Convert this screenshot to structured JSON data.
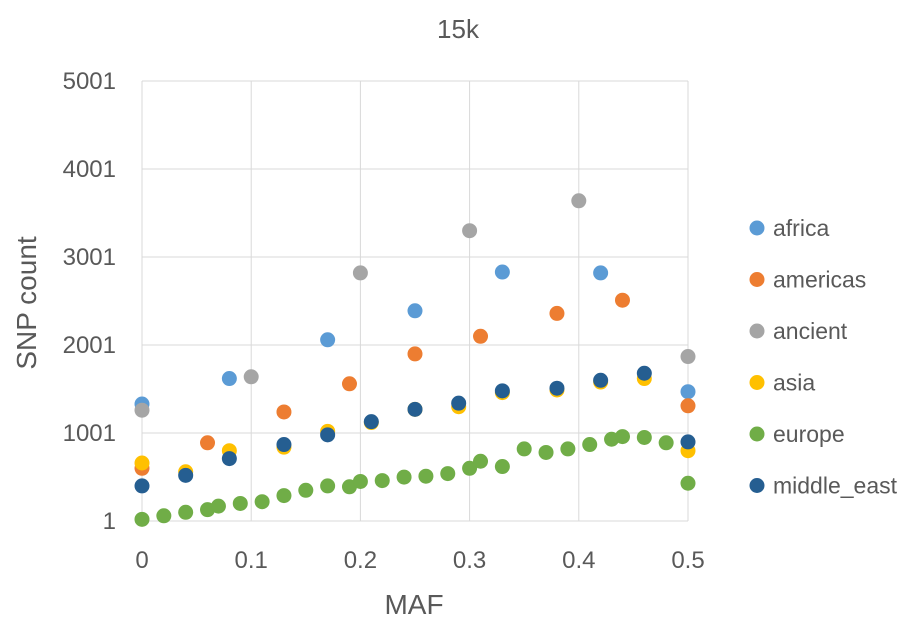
{
  "chart_data": {
    "type": "scatter",
    "title": "15k",
    "xlabel": "MAF",
    "ylabel": "SNP count",
    "xlim": [
      0,
      0.5
    ],
    "ylim": [
      1,
      5001
    ],
    "x_ticks": [
      0,
      0.1,
      0.2,
      0.3,
      0.4,
      0.5
    ],
    "x_tick_labels": [
      "0",
      "0.1",
      "0.2",
      "0.3",
      "0.4",
      "0.5"
    ],
    "y_ticks": [
      1,
      1001,
      2001,
      3001,
      4001,
      5001
    ],
    "y_tick_labels": [
      "1",
      "1001",
      "2001",
      "3001",
      "4001",
      "5001"
    ],
    "grid": true,
    "legend_position": "right",
    "series": [
      {
        "name": "africa",
        "color": "#5B9BD5",
        "points": [
          [
            0,
            1330
          ],
          [
            0.08,
            1620
          ],
          [
            0.17,
            2060
          ],
          [
            0.25,
            2390
          ],
          [
            0.33,
            2830
          ],
          [
            0.42,
            2820
          ],
          [
            0.5,
            1470
          ]
        ]
      },
      {
        "name": "americas",
        "color": "#ED7D31",
        "points": [
          [
            0,
            600
          ],
          [
            0.06,
            890
          ],
          [
            0.13,
            1240
          ],
          [
            0.19,
            1560
          ],
          [
            0.25,
            1900
          ],
          [
            0.31,
            2100
          ],
          [
            0.38,
            2360
          ],
          [
            0.44,
            2510
          ],
          [
            0.5,
            1310
          ]
        ]
      },
      {
        "name": "ancient",
        "color": "#A5A5A5",
        "points": [
          [
            0,
            1260
          ],
          [
            0.1,
            1640
          ],
          [
            0.2,
            2820
          ],
          [
            0.3,
            3300
          ],
          [
            0.4,
            3640
          ],
          [
            0.5,
            1870
          ]
        ]
      },
      {
        "name": "asia",
        "color": "#FFC000",
        "points": [
          [
            0,
            660
          ],
          [
            0.04,
            560
          ],
          [
            0.08,
            800
          ],
          [
            0.13,
            840
          ],
          [
            0.17,
            1020
          ],
          [
            0.21,
            1120
          ],
          [
            0.25,
            1270
          ],
          [
            0.29,
            1300
          ],
          [
            0.33,
            1460
          ],
          [
            0.38,
            1490
          ],
          [
            0.42,
            1580
          ],
          [
            0.46,
            1620
          ],
          [
            0.5,
            800
          ]
        ]
      },
      {
        "name": "europe",
        "color": "#70AD47",
        "points": [
          [
            0,
            20
          ],
          [
            0.02,
            60
          ],
          [
            0.04,
            100
          ],
          [
            0.06,
            130
          ],
          [
            0.07,
            170
          ],
          [
            0.09,
            200
          ],
          [
            0.11,
            220
          ],
          [
            0.13,
            290
          ],
          [
            0.15,
            350
          ],
          [
            0.17,
            400
          ],
          [
            0.19,
            390
          ],
          [
            0.2,
            450
          ],
          [
            0.22,
            460
          ],
          [
            0.24,
            500
          ],
          [
            0.26,
            510
          ],
          [
            0.28,
            540
          ],
          [
            0.3,
            600
          ],
          [
            0.31,
            680
          ],
          [
            0.33,
            620
          ],
          [
            0.35,
            820
          ],
          [
            0.37,
            780
          ],
          [
            0.39,
            820
          ],
          [
            0.41,
            870
          ],
          [
            0.43,
            930
          ],
          [
            0.44,
            960
          ],
          [
            0.46,
            950
          ],
          [
            0.48,
            890
          ],
          [
            0.5,
            430
          ]
        ]
      },
      {
        "name": "middle_east",
        "color": "#255E91",
        "points": [
          [
            0,
            400
          ],
          [
            0.04,
            520
          ],
          [
            0.08,
            710
          ],
          [
            0.13,
            870
          ],
          [
            0.17,
            980
          ],
          [
            0.21,
            1130
          ],
          [
            0.25,
            1270
          ],
          [
            0.29,
            1340
          ],
          [
            0.33,
            1480
          ],
          [
            0.38,
            1510
          ],
          [
            0.42,
            1600
          ],
          [
            0.46,
            1680
          ],
          [
            0.5,
            900
          ]
        ]
      }
    ]
  }
}
